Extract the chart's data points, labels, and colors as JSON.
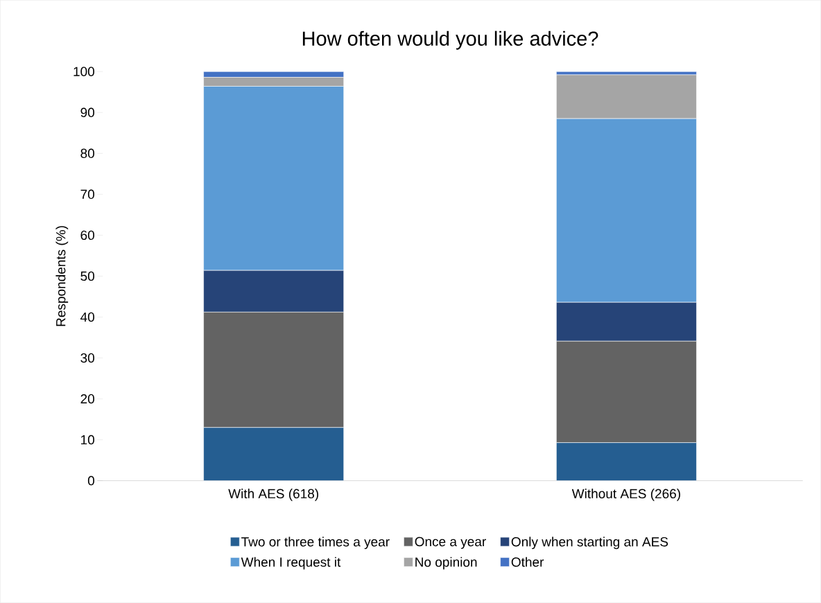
{
  "chart_data": {
    "type": "bar",
    "stacked": true,
    "title": "How often would you like advice?",
    "ylabel": "Respondents (%)",
    "categories": [
      "With AES (618)",
      "Without AES (266)"
    ],
    "ylim": [
      0,
      100
    ],
    "yticks": [
      0,
      10,
      20,
      30,
      40,
      50,
      60,
      70,
      80,
      90,
      100
    ],
    "legend": "bottom",
    "series": [
      {
        "name": "Two or three times a year",
        "color": "#255e91",
        "values": [
          13,
          9.3
        ]
      },
      {
        "name": "Once a year",
        "color": "#636363",
        "values": [
          28.2,
          24.8
        ]
      },
      {
        "name": "Only when starting an AES",
        "color": "#264478",
        "values": [
          10.2,
          9.5
        ]
      },
      {
        "name": "When I request it",
        "color": "#5b9bd5",
        "values": [
          45,
          44.9
        ]
      },
      {
        "name": "No opinion",
        "color": "#a5a5a5",
        "values": [
          2.2,
          10.7
        ]
      },
      {
        "name": "Other",
        "color": "#4472c4",
        "values": [
          1.4,
          0.8
        ]
      }
    ]
  }
}
